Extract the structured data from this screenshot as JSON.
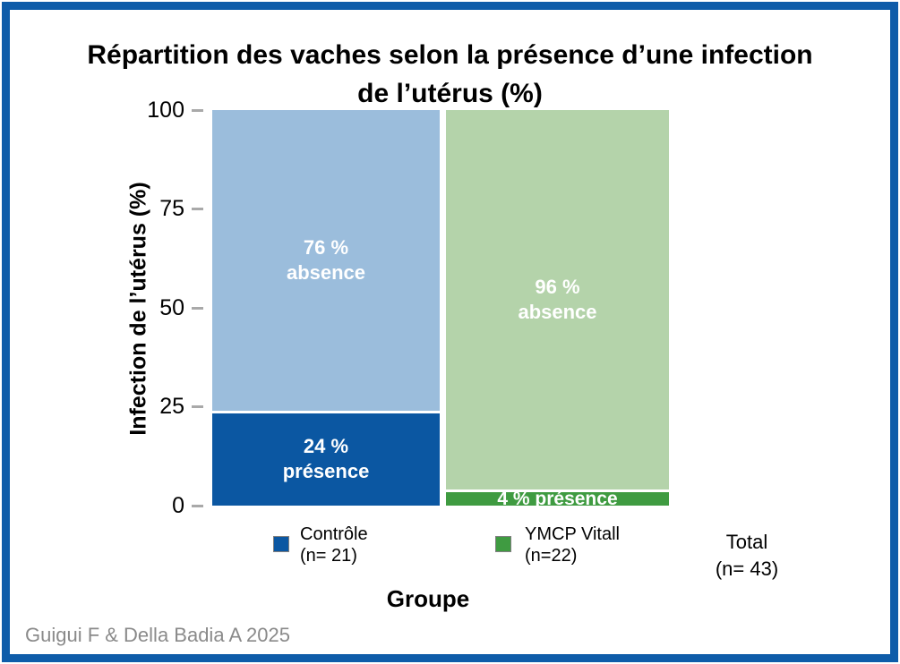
{
  "title_line1": "Répartition des vaches selon la présence d’une infection",
  "title_line2": "de l’utérus (%)",
  "colors": {
    "frame_border": "#0E5CA9",
    "presence_blue": "#0B57A2",
    "absence_light_blue": "#9BBDDC",
    "presence_green": "#3F9B41",
    "absence_light_green": "#B4D3AA",
    "tick_mark_gray": "#A9A9A9",
    "attribution_gray": "#8A8A8A",
    "segment_label_text": "#FFFFFF"
  },
  "chart_data": {
    "type": "bar",
    "stacked": true,
    "title": "Répartition des vaches selon la présence d’une infection de l’utérus (%)",
    "xlabel": "Groupe",
    "ylabel": "Infection de l’utérus (%)",
    "ylim": [
      0,
      100
    ],
    "yticks": [
      0,
      25,
      50,
      75,
      100
    ],
    "grid": false,
    "legend_position": "bottom",
    "categories": [
      "Contrôle (n= 21)",
      "YMCP Vitall (n=22)"
    ],
    "series": [
      {
        "name": "présence",
        "values": [
          24,
          4
        ]
      },
      {
        "name": "absence",
        "values": [
          76,
          96
        ]
      }
    ],
    "bar0": {
      "absence_label_line1": "76 %",
      "absence_label_line2": "absence",
      "presence_label_line1": "24 %",
      "presence_label_line2": "présence"
    },
    "bar1": {
      "absence_label_line1": "96 %",
      "absence_label_line2": "absence",
      "presence_label": "4 % présence"
    },
    "total_n": 43
  },
  "legend": {
    "items": [
      {
        "label_line1": "Contrôle",
        "label_line2": "(n= 21)",
        "color": "#0B57A2"
      },
      {
        "label_line1": "YMCP Vitall",
        "label_line2": "(n=22)",
        "color": "#3F9B41"
      }
    ],
    "total_line1": "Total",
    "total_line2": "(n= 43)"
  },
  "attribution": "Guigui F & Della Badia A 2025"
}
